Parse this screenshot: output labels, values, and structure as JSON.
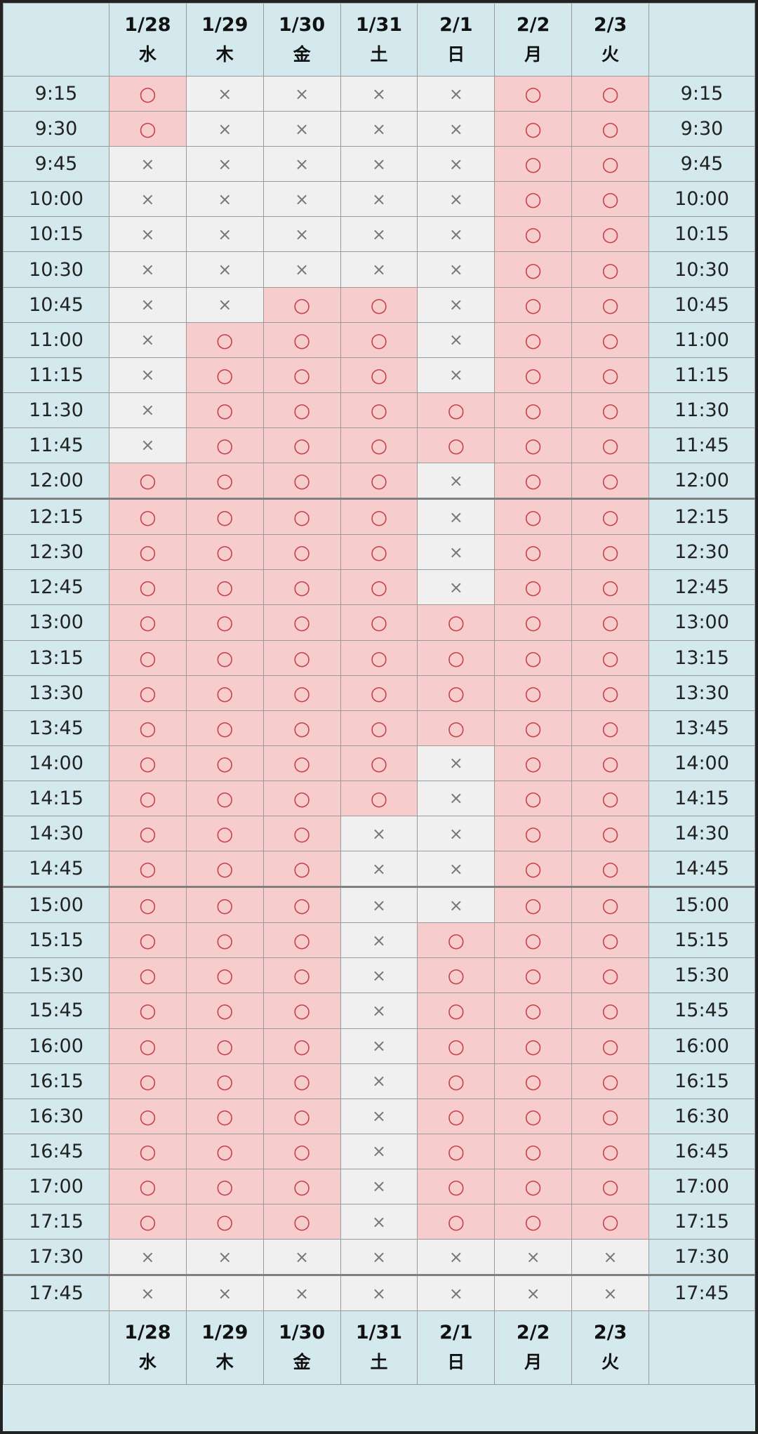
{
  "colors": {
    "available_bg": "#f7cccc",
    "unavailable_bg": "#f0f0f0",
    "header_bg": "#d3e9ee",
    "saturday": "#2a5d9f",
    "sunday": "#cc0000",
    "circle": "#c8404a"
  },
  "days": [
    {
      "date": "1/28",
      "weekday": "水",
      "type": "weekday"
    },
    {
      "date": "1/29",
      "weekday": "木",
      "type": "weekday"
    },
    {
      "date": "1/30",
      "weekday": "金",
      "type": "weekday"
    },
    {
      "date": "1/31",
      "weekday": "土",
      "type": "sat"
    },
    {
      "date": "2/1",
      "weekday": "日",
      "type": "sun"
    },
    {
      "date": "2/2",
      "weekday": "月",
      "type": "weekday"
    },
    {
      "date": "2/3",
      "weekday": "火",
      "type": "weekday"
    }
  ],
  "rows": [
    {
      "time": "9:15",
      "cells": [
        "○",
        "×",
        "×",
        "×",
        "×",
        "○",
        "○"
      ]
    },
    {
      "time": "9:30",
      "cells": [
        "○",
        "×",
        "×",
        "×",
        "×",
        "○",
        "○"
      ]
    },
    {
      "time": "9:45",
      "cells": [
        "×",
        "×",
        "×",
        "×",
        "×",
        "○",
        "○"
      ]
    },
    {
      "time": "10:00",
      "cells": [
        "×",
        "×",
        "×",
        "×",
        "×",
        "○",
        "○"
      ]
    },
    {
      "time": "10:15",
      "cells": [
        "×",
        "×",
        "×",
        "×",
        "×",
        "○",
        "○"
      ]
    },
    {
      "time": "10:30",
      "cells": [
        "×",
        "×",
        "×",
        "×",
        "×",
        "○",
        "○"
      ]
    },
    {
      "time": "10:45",
      "cells": [
        "×",
        "×",
        "○",
        "○",
        "×",
        "○",
        "○"
      ]
    },
    {
      "time": "11:00",
      "cells": [
        "×",
        "○",
        "○",
        "○",
        "×",
        "○",
        "○"
      ]
    },
    {
      "time": "11:15",
      "cells": [
        "×",
        "○",
        "○",
        "○",
        "×",
        "○",
        "○"
      ]
    },
    {
      "time": "11:30",
      "cells": [
        "×",
        "○",
        "○",
        "○",
        "○",
        "○",
        "○"
      ]
    },
    {
      "time": "11:45",
      "cells": [
        "×",
        "○",
        "○",
        "○",
        "○",
        "○",
        "○"
      ]
    },
    {
      "time": "12:00",
      "cells": [
        "○",
        "○",
        "○",
        "○",
        "×",
        "○",
        "○"
      ]
    },
    {
      "time": "12:15",
      "cells": [
        "○",
        "○",
        "○",
        "○",
        "×",
        "○",
        "○"
      ]
    },
    {
      "time": "12:30",
      "cells": [
        "○",
        "○",
        "○",
        "○",
        "×",
        "○",
        "○"
      ]
    },
    {
      "time": "12:45",
      "cells": [
        "○",
        "○",
        "○",
        "○",
        "×",
        "○",
        "○"
      ]
    },
    {
      "time": "13:00",
      "cells": [
        "○",
        "○",
        "○",
        "○",
        "○",
        "○",
        "○"
      ]
    },
    {
      "time": "13:15",
      "cells": [
        "○",
        "○",
        "○",
        "○",
        "○",
        "○",
        "○"
      ]
    },
    {
      "time": "13:30",
      "cells": [
        "○",
        "○",
        "○",
        "○",
        "○",
        "○",
        "○"
      ]
    },
    {
      "time": "13:45",
      "cells": [
        "○",
        "○",
        "○",
        "○",
        "○",
        "○",
        "○"
      ]
    },
    {
      "time": "14:00",
      "cells": [
        "○",
        "○",
        "○",
        "○",
        "×",
        "○",
        "○"
      ]
    },
    {
      "time": "14:15",
      "cells": [
        "○",
        "○",
        "○",
        "○",
        "×",
        "○",
        "○"
      ]
    },
    {
      "time": "14:30",
      "cells": [
        "○",
        "○",
        "○",
        "×",
        "×",
        "○",
        "○"
      ]
    },
    {
      "time": "14:45",
      "cells": [
        "○",
        "○",
        "○",
        "×",
        "×",
        "○",
        "○"
      ]
    },
    {
      "time": "15:00",
      "cells": [
        "○",
        "○",
        "○",
        "×",
        "×",
        "○",
        "○"
      ]
    },
    {
      "time": "15:15",
      "cells": [
        "○",
        "○",
        "○",
        "×",
        "○",
        "○",
        "○"
      ]
    },
    {
      "time": "15:30",
      "cells": [
        "○",
        "○",
        "○",
        "×",
        "○",
        "○",
        "○"
      ]
    },
    {
      "time": "15:45",
      "cells": [
        "○",
        "○",
        "○",
        "×",
        "○",
        "○",
        "○"
      ]
    },
    {
      "time": "16:00",
      "cells": [
        "○",
        "○",
        "○",
        "×",
        "○",
        "○",
        "○"
      ]
    },
    {
      "time": "16:15",
      "cells": [
        "○",
        "○",
        "○",
        "×",
        "○",
        "○",
        "○"
      ]
    },
    {
      "time": "16:30",
      "cells": [
        "○",
        "○",
        "○",
        "×",
        "○",
        "○",
        "○"
      ]
    },
    {
      "time": "16:45",
      "cells": [
        "○",
        "○",
        "○",
        "×",
        "○",
        "○",
        "○"
      ]
    },
    {
      "time": "17:00",
      "cells": [
        "○",
        "○",
        "○",
        "×",
        "○",
        "○",
        "○"
      ]
    },
    {
      "time": "17:15",
      "cells": [
        "○",
        "○",
        "○",
        "×",
        "○",
        "○",
        "○"
      ]
    },
    {
      "time": "17:30",
      "cells": [
        "×",
        "×",
        "×",
        "×",
        "×",
        "×",
        "×"
      ]
    },
    {
      "time": "17:45",
      "cells": [
        "×",
        "×",
        "×",
        "×",
        "×",
        "×",
        "×"
      ]
    }
  ]
}
